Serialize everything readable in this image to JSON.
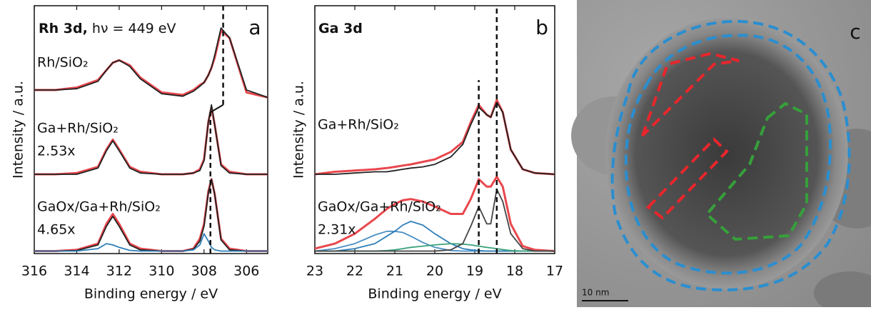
{
  "chart_data": [
    {
      "type": "line",
      "title": "Rh 3d,",
      "subtitle": "hν = 449 eV",
      "panel_label": "a",
      "x_label": "Binding energy / eV",
      "y_label": "Intensity / a.u.",
      "annotations": [
        "Rh/SiO₂",
        "Ga+Rh/SiO₂",
        "2.53x",
        "GaOx/Ga+Rh/SiO₂",
        "4.65x"
      ],
      "x": [
        316,
        315,
        314,
        313,
        312.6,
        312.3,
        312,
        311.5,
        311,
        310,
        309,
        308.5,
        308.2,
        308,
        307.8,
        307.65,
        307.5,
        307.2,
        306.8,
        306,
        305
      ],
      "xlim": [
        316,
        305
      ],
      "xticks": [
        316,
        314,
        312,
        310,
        308,
        306
      ],
      "ylim": [
        0,
        100
      ],
      "series": [
        {
          "color": "#e8474d",
          "values": [
            66,
            66,
            67,
            70,
            74,
            77,
            78,
            76,
            71,
            65,
            64,
            66,
            68,
            69,
            72,
            75,
            79,
            90,
            87,
            65,
            63
          ]
        },
        {
          "color": "#222222",
          "values": [
            66,
            66,
            66.5,
            69.5,
            74,
            77,
            78,
            75.5,
            70.5,
            64.5,
            63.5,
            65.5,
            67.5,
            69,
            72,
            75,
            80,
            91,
            87,
            66,
            63
          ]
        },
        {
          "color": "#e8474d",
          "values": [
            32,
            32,
            32.5,
            35,
            42,
            46,
            42,
            35,
            33,
            32,
            32,
            32.5,
            34,
            38,
            53,
            59,
            52,
            36,
            33,
            32,
            32
          ]
        },
        {
          "color": "#222222",
          "values": [
            32,
            32,
            32,
            34.5,
            41.5,
            45.5,
            41.5,
            34.5,
            32.5,
            32,
            32,
            32.5,
            33.5,
            37.5,
            53,
            60,
            52,
            35.5,
            32.5,
            32,
            32
          ]
        },
        {
          "color": "#e8474d",
          "values": [
            1,
            1,
            1.5,
            4,
            12,
            16,
            12,
            4,
            2,
            1,
            1,
            2,
            6,
            12,
            25,
            30,
            24,
            6,
            2,
            1,
            1
          ]
        },
        {
          "color": "#222222",
          "values": [
            1,
            1,
            1.2,
            3.5,
            11,
            15,
            11,
            3.5,
            1.5,
            1,
            1,
            1.8,
            5,
            11,
            24.5,
            30,
            24,
            5.5,
            1.5,
            1,
            1
          ]
        },
        {
          "color": "#2f7fb8",
          "values": [
            1,
            1,
            1,
            2,
            4,
            3.5,
            2.5,
            1.3,
            1,
            1,
            1,
            1.5,
            3.5,
            8,
            5,
            2.5,
            1.5,
            1,
            1,
            1,
            1
          ]
        }
      ],
      "reference_lines": [
        {
          "x": 307.1,
          "y": [
            60,
            100
          ]
        },
        {
          "x": 307.7,
          "y": [
            0,
            57
          ]
        }
      ]
    },
    {
      "type": "line",
      "title": "Ga 3d",
      "panel_label": "b",
      "x_label": "Binding energy / eV",
      "y_label": "Intensity / a.u.",
      "annotations": [
        "Ga+Rh/SiO₂",
        "GaOx/Ga+Rh/SiO₂",
        "2.31x"
      ],
      "x": [
        23,
        22.5,
        22,
        21.5,
        21.2,
        21,
        20.8,
        20.6,
        20.3,
        20,
        19.6,
        19.3,
        19.1,
        18.9,
        18.7,
        18.6,
        18.45,
        18.3,
        18.1,
        17.8,
        17.5,
        17
      ],
      "xlim": [
        23,
        17
      ],
      "xticks": [
        23,
        22,
        21,
        20,
        19,
        18,
        17
      ],
      "ylim": [
        0,
        100
      ],
      "series": [
        {
          "color": "#e8474d",
          "values": [
            32,
            33,
            33.5,
            34,
            34.5,
            35,
            35.5,
            36,
            37,
            38,
            41,
            45,
            53,
            60,
            56,
            55,
            62,
            57,
            42,
            34,
            32.5,
            32
          ]
        },
        {
          "color": "#222222",
          "values": [
            32,
            32,
            32.5,
            33,
            33,
            33.5,
            34,
            34.5,
            35,
            36,
            39,
            44,
            52,
            59,
            56,
            55,
            61,
            57,
            42,
            34,
            32.5,
            32
          ]
        },
        {
          "color": "#e8474d",
          "values": [
            2,
            4,
            8,
            14,
            18,
            20,
            21.5,
            22,
            21,
            19,
            16,
            16,
            22,
            30,
            27,
            27,
            31,
            27,
            12,
            3,
            1.5,
            1
          ]
        },
        {
          "color": "#4a8fc4",
          "values": [
            1,
            2,
            4,
            7.5,
            9,
            9,
            8.5,
            7,
            4.5,
            2.5,
            1.2,
            1,
            1,
            1,
            1,
            1,
            1,
            1,
            1,
            1,
            1,
            1
          ]
        },
        {
          "color": "#2f7fb8",
          "values": [
            1,
            1,
            2,
            4,
            7,
            9,
            11.5,
            13,
            11.5,
            8,
            4,
            2,
            1.5,
            1.2,
            1,
            1,
            1,
            1,
            1,
            1,
            1,
            1
          ]
        },
        {
          "color": "#3aa27a",
          "values": [
            1,
            1,
            1,
            1,
            1.2,
            1.5,
            2,
            2.5,
            3,
            3.5,
            4,
            3.8,
            3.5,
            3,
            2.5,
            2.3,
            2,
            1.6,
            1.2,
            1,
            1,
            1
          ]
        },
        {
          "color": "#444444",
          "values": [
            1,
            1,
            1,
            1,
            1,
            1,
            1,
            1,
            1,
            1,
            1.5,
            4,
            11,
            19,
            12,
            12,
            26,
            21,
            8,
            2,
            1,
            1
          ]
        }
      ],
      "reference_lines": [
        {
          "x": 18.9,
          "y": [
            0,
            70
          ]
        },
        {
          "x": 18.45,
          "y": [
            0,
            100
          ]
        }
      ]
    }
  ],
  "image": {
    "label": "c",
    "scale_bar": "10 nm"
  }
}
